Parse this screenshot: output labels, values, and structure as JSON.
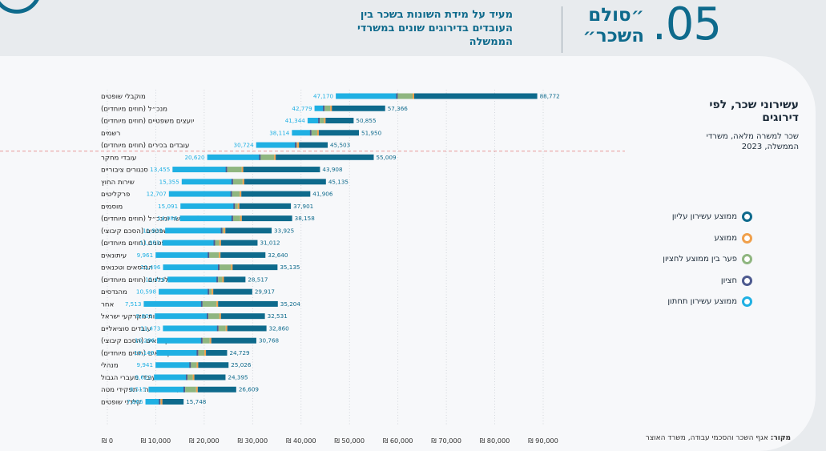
{
  "header": {
    "number": ".05",
    "title": "״סולם השכר״",
    "subtitle": "מעיד על מידת השונות בשכר בין העובדים בדירוגים שונים במשרדי הממשלה"
  },
  "side": {
    "title": "עשירוני שכר, לפי דירוגים",
    "subtitle": "שכר למשרה מלאה, משרדי הממשלה, 2023"
  },
  "legend": [
    {
      "label": "ממוצע עשירון עליון",
      "color": "#0e6a8c"
    },
    {
      "label": "ממוצע",
      "color": "#f0a04b"
    },
    {
      "label": "פער בין ממוצע לחציון",
      "color": "#8fb680"
    },
    {
      "label": "חציון",
      "color": "#4d5a8f"
    },
    {
      "label": "ממוצע עשירון תחתון",
      "color": "#1fb0e3"
    }
  ],
  "source": {
    "label": "מקור:",
    "text": "אגף השכר והסכמי עבודה, משרד האוצר"
  },
  "colors": {
    "top": "#0e6a8c",
    "gap": "#8fb680",
    "bottom": "#1fb0e3",
    "mid": "#4d5a8f",
    "avg": "#f0a04b"
  },
  "chart_data": {
    "type": "bar",
    "x_range": [
      0,
      90000
    ],
    "x_ticks": [
      0,
      10000,
      20000,
      30000,
      40000,
      50000,
      60000,
      70000,
      80000,
      90000
    ],
    "x_tick_labels": [
      "₪ 0",
      "₪ 10,000",
      "₪ 20,000",
      "₪ 30,000",
      "₪ 40,000",
      "₪ 50,000",
      "₪ 60,000",
      "₪ 70,000",
      "₪ 80,000",
      "₪ 90,000"
    ],
    "bottom_labels": [
      "47,170",
      "42,779",
      "41,344",
      "38,114",
      "30,724",
      "20,620",
      "13,455",
      "15,355",
      "12,707",
      "15,091",
      "14,986",
      "11,933",
      "11,353",
      "9,961",
      "11,496",
      "12,426",
      "10,598",
      "7,513",
      "9,803",
      "11,473",
      "10,286",
      "10,146",
      "9,941",
      "9,622",
      "8,515",
      "7,866"
    ],
    "top_labels": [
      "88,772",
      "57,366",
      "50,855",
      "51,950",
      "45,503",
      "55,009",
      "43,908",
      "45,135",
      "41,906",
      "37,901",
      "38,158",
      "33,925",
      "31,012",
      "32,640",
      "35,135",
      "28,517",
      "29,917",
      "35,204",
      "32,531",
      "32,860",
      "30,768",
      "24,729",
      "25,026",
      "24,395",
      "26,609",
      "15,748"
    ],
    "categories": [
      "מוקבלי שופטים",
      "מנכ״ל (חוזים מיוחדים)",
      "יועצים משפטיים (חוזים מיוחדים)",
      "רשמים",
      "עובדים בכירים (חוזים מיוחדים)",
      "עובדי מחקר",
      "סנגורים ציבוריים",
      "שירות החוץ",
      "פרקליטים",
      "מוסמים",
      "לשכות שר ומנכ״ל (חוזים מיוחדים)",
      "משפטנים (הסכם קיבוצי)",
      "משפטנים (חוזים מיוחדים)",
      "עיתונאים",
      "הנדסאים וטכנאים",
      "כלכלנים (חוזים מיוחדים)",
      "מהנדסים",
      "אחר",
      "רשות מקרקעי ישראל",
      "עובדים סוציאליים",
      "אקדמאים (הסכם קיבוצי)",
      "אקדמאים (חוזים מיוחדים)",
      "מנהלי",
      "עובדי מעברי הגבול",
      "עובדי הוראה - תפקידי מטה",
      "קלדני שופטים"
    ],
    "series": [
      {
        "name": "ממוצע עשירון תחתון",
        "values": [
          47170,
          42779,
          41344,
          38114,
          30724,
          20620,
          13455,
          15355,
          12707,
          15091,
          14986,
          11933,
          11353,
          9961,
          11496,
          12426,
          10598,
          7513,
          9803,
          11473,
          10286,
          10146,
          9941,
          9622,
          8515,
          7866
        ]
      },
      {
        "name": "חציון",
        "values": [
          59800,
          44700,
          43700,
          42000,
          38900,
          31500,
          24600,
          25800,
          25600,
          26200,
          25800,
          23600,
          22100,
          20900,
          23000,
          22700,
          20900,
          19500,
          20700,
          22800,
          19500,
          18600,
          17100,
          16400,
          15900,
          10800
        ]
      },
      {
        "name": "פער בין ממוצע לחציון",
        "values": [
          63200,
          46200,
          44900,
          43500,
          39400,
          34600,
          27900,
          28100,
          27500,
          27100,
          27600,
          24200,
          23300,
          23200,
          25700,
          23900,
          21700,
          22700,
          23300,
          24600,
          21300,
          20200,
          18600,
          17800,
          18500,
          11200
        ]
      },
      {
        "name": "ממוצע עשירון עליון",
        "values": [
          88772,
          57366,
          50855,
          51950,
          45503,
          55009,
          43908,
          45135,
          41906,
          37901,
          38158,
          33925,
          31012,
          32640,
          35135,
          28517,
          29917,
          35204,
          32531,
          32860,
          30768,
          24729,
          25026,
          24395,
          26609,
          15748
        ]
      }
    ]
  }
}
